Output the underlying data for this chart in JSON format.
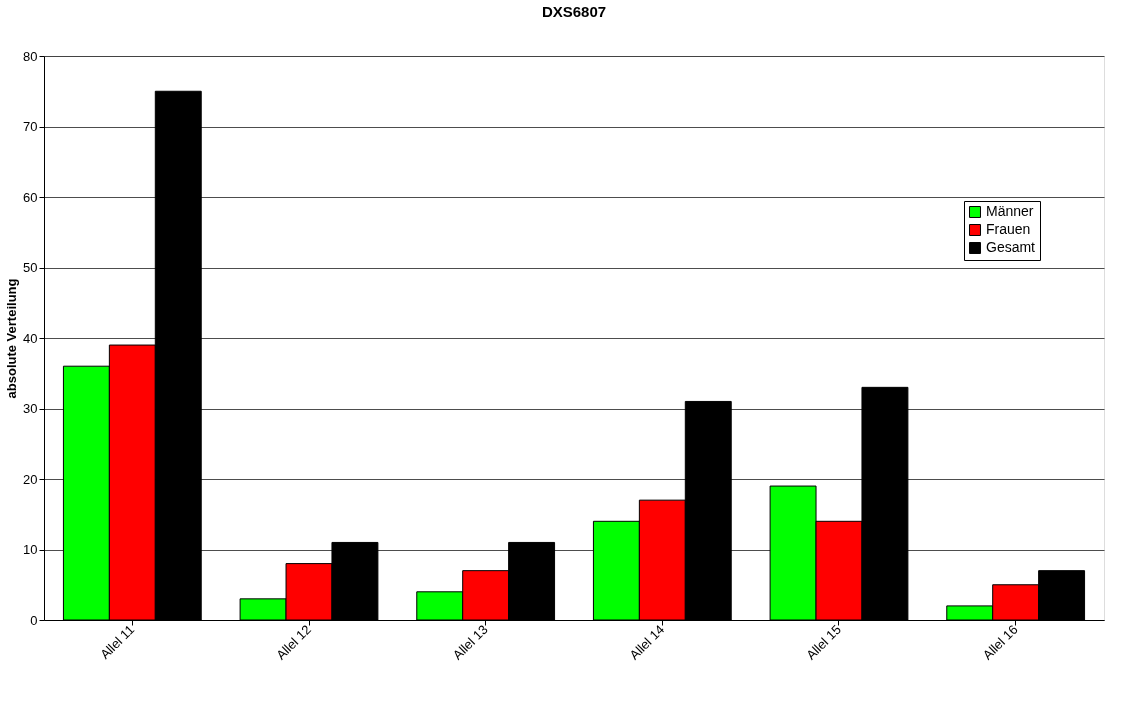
{
  "chart_data": {
    "type": "bar",
    "title": "DXS6807",
    "ylabel": "absolute Verteilung",
    "categories": [
      "Allel 11",
      "Allel 12",
      "Allel 13",
      "Allel 14",
      "Allel 15",
      "Allel 16"
    ],
    "series": [
      {
        "name": "Männer",
        "color": "#00ff00",
        "values": [
          36,
          3,
          4,
          14,
          19,
          2
        ]
      },
      {
        "name": "Frauen",
        "color": "#ff0000",
        "values": [
          39,
          8,
          7,
          17,
          14,
          5
        ]
      },
      {
        "name": "Gesamt",
        "color": "#000000",
        "values": [
          75,
          11,
          11,
          31,
          33,
          7
        ]
      }
    ],
    "ylim": [
      0,
      80
    ],
    "yticks": [
      0,
      10,
      20,
      30,
      40,
      50,
      60,
      70,
      80
    ],
    "grid": "y",
    "legend": "right"
  }
}
